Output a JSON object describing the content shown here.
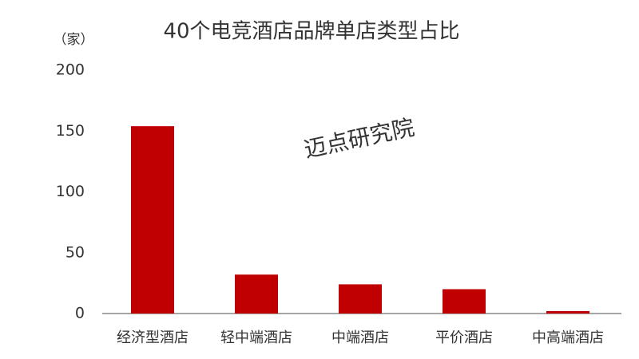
{
  "chart_data": {
    "type": "bar",
    "title": "40个电竞酒店品牌单店类型占比",
    "y_unit": "（家）",
    "watermark": "迈点研究院",
    "categories": [
      "经济型酒店",
      "轻中端酒店",
      "中端酒店",
      "平价酒店",
      "中高端酒店"
    ],
    "values": [
      154,
      32,
      24,
      20,
      2
    ],
    "color": "#c00000",
    "ylim": [
      0,
      200
    ],
    "yticks": [
      0,
      50,
      100,
      150,
      200
    ],
    "grid": false
  }
}
